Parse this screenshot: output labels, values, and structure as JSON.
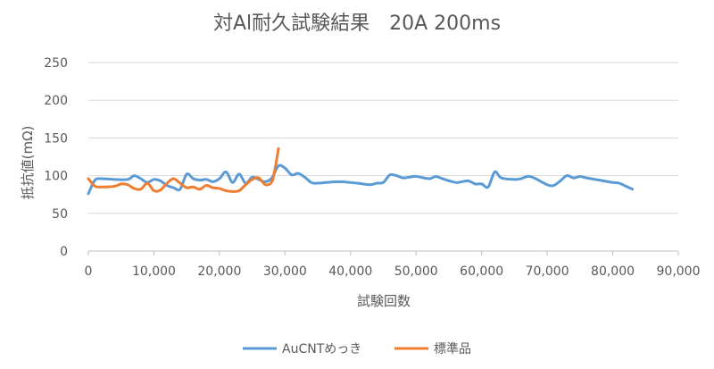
{
  "chart_data": {
    "type": "line",
    "title": "対Al耐久試験結果　20A 200ms",
    "xlabel": "試験回数",
    "ylabel": "抵抗値(mΩ)",
    "xlim": [
      0,
      90000
    ],
    "ylim": [
      0,
      250
    ],
    "x_ticks": [
      0,
      10000,
      20000,
      30000,
      40000,
      50000,
      60000,
      70000,
      80000,
      90000
    ],
    "x_tick_labels": [
      "0",
      "10,000",
      "20,000",
      "30,000",
      "40,000",
      "50,000",
      "60,000",
      "70,000",
      "80,000",
      "90,000"
    ],
    "y_ticks": [
      0,
      50,
      100,
      150,
      200,
      250
    ],
    "y_tick_labels": [
      "0",
      "50",
      "100",
      "150",
      "200",
      "250"
    ],
    "grid": "horizontal",
    "legend_position": "bottom",
    "series": [
      {
        "name": "AuCNTめっき",
        "color": "#5b9bd5",
        "x": [
          0,
          1000,
          2000,
          4000,
          6000,
          7000,
          8000,
          9000,
          10000,
          11000,
          12000,
          13000,
          14000,
          15000,
          16000,
          17000,
          18000,
          19000,
          20000,
          21000,
          22000,
          23000,
          24000,
          25000,
          26000,
          27000,
          28000,
          29000,
          30000,
          31000,
          32000,
          33000,
          34000,
          35000,
          38000,
          41000,
          43000,
          44000,
          45000,
          46000,
          47000,
          48000,
          49000,
          50000,
          52000,
          53000,
          54000,
          56000,
          57000,
          58000,
          59000,
          60000,
          61000,
          62000,
          63000,
          65000,
          66000,
          67000,
          68000,
          70000,
          71000,
          72000,
          73000,
          74000,
          75000,
          76000,
          78000,
          80000,
          81000,
          82000,
          83000
        ],
        "y": [
          76,
          94,
          96,
          95,
          95,
          100,
          96,
          91,
          95,
          93,
          87,
          84,
          82,
          102,
          96,
          94,
          95,
          92,
          96,
          105,
          91,
          102,
          90,
          98,
          95,
          92,
          97,
          113,
          110,
          101,
          103,
          98,
          91,
          90,
          92,
          90,
          88,
          90,
          91,
          101,
          100,
          97,
          98,
          99,
          96,
          99,
          96,
          91,
          92,
          93,
          89,
          89,
          85,
          105,
          97,
          95,
          96,
          99,
          97,
          88,
          87,
          93,
          100,
          97,
          99,
          97,
          94,
          91,
          90,
          86,
          82
        ]
      },
      {
        "name": "標準品",
        "color": "#ed7d31",
        "x": [
          0,
          1000,
          2000,
          4000,
          5000,
          6000,
          7000,
          8000,
          9000,
          10000,
          11000,
          12000,
          13000,
          14000,
          15000,
          16000,
          17000,
          18000,
          19000,
          20000,
          21000,
          22000,
          23000,
          24000,
          25000,
          26000,
          27000,
          28000,
          28500,
          29000
        ],
        "y": [
          96,
          86,
          85,
          86,
          89,
          88,
          83,
          82,
          90,
          80,
          81,
          90,
          96,
          90,
          84,
          85,
          82,
          87,
          84,
          83,
          80,
          79,
          80,
          88,
          95,
          97,
          88,
          92,
          110,
          136
        ]
      }
    ]
  }
}
